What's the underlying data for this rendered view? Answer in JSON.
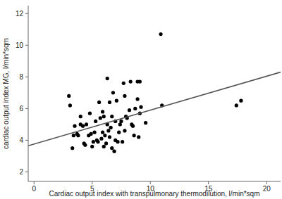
{
  "chart_data": {
    "type": "scatter",
    "x_label": "Cardiac output index with transpulmonary thermodilution, l/min*sqm",
    "y_label": "cardiac output index  MG, l/min*sqm",
    "xlim": [
      -0.5,
      21.2
    ],
    "ylim": [
      1.4,
      12.5
    ],
    "xticks": [
      0,
      5,
      10,
      15,
      20
    ],
    "yticks": [
      2,
      4,
      6,
      8,
      10,
      12
    ],
    "grid": false,
    "series": [
      {
        "type": "scatter",
        "color": "#000000",
        "marker": "circle",
        "x": [
          3.0,
          3.1,
          3.3,
          3.4,
          3.5,
          3.7,
          3.8,
          4.0,
          4.0,
          4.2,
          4.3,
          4.4,
          4.5,
          4.7,
          4.8,
          4.9,
          5.0,
          5.1,
          5.2,
          5.3,
          5.4,
          5.5,
          5.6,
          5.7,
          5.8,
          5.9,
          5.9,
          6.0,
          6.0,
          6.1,
          6.2,
          6.3,
          6.3,
          6.4,
          6.5,
          6.5,
          6.6,
          6.7,
          6.7,
          6.8,
          6.9,
          7.0,
          7.0,
          7.1,
          7.2,
          7.3,
          7.4,
          7.5,
          7.6,
          7.7,
          7.8,
          7.8,
          7.9,
          8.0,
          8.2,
          8.3,
          8.4,
          8.5,
          8.6,
          8.7,
          8.9,
          8.9,
          9.0,
          9.1,
          9.2,
          9.1,
          9.6,
          10.9,
          11.0,
          17.4,
          17.8
        ],
        "values": [
          6.8,
          6.2,
          3.5,
          4.3,
          4.9,
          4.4,
          4.3,
          5.0,
          5.5,
          4.9,
          3.8,
          3.7,
          5.0,
          4.3,
          5.7,
          4.4,
          3.6,
          3.9,
          4.5,
          5.2,
          4.0,
          3.9,
          6.4,
          5.4,
          4.1,
          4.5,
          5.8,
          3.6,
          5.5,
          4.3,
          3.8,
          7.9,
          5.0,
          4.6,
          4.2,
          6.4,
          4.8,
          3.5,
          5.5,
          7.0,
          3.3,
          5.2,
          4.0,
          6.5,
          3.9,
          4.5,
          5.0,
          5.2,
          3.9,
          7.6,
          6.8,
          4.6,
          5.5,
          5.4,
          5.9,
          7.7,
          5.0,
          4.9,
          4.3,
          6.0,
          7.7,
          6.6,
          4.2,
          5.7,
          6.1,
          7.7,
          5.1,
          10.7,
          6.2,
          6.2,
          6.5
        ]
      },
      {
        "type": "line",
        "color": "#555555",
        "line_style": "solid",
        "x": [
          -0.5,
          21.2
        ],
        "values": [
          3.65,
          8.3
        ]
      }
    ]
  }
}
